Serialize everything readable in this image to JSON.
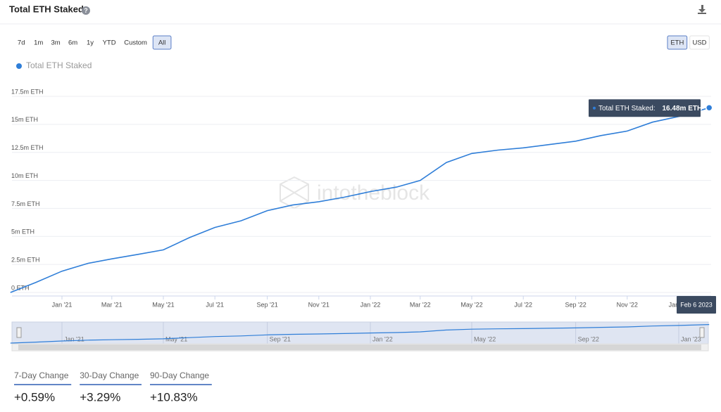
{
  "header": {
    "title": "Total ETH Staked"
  },
  "range_buttons": [
    "7d",
    "1m",
    "3m",
    "6m",
    "1y",
    "YTD",
    "Custom",
    "All"
  ],
  "active_range": 7,
  "unit_buttons": [
    "ETH",
    "USD"
  ],
  "active_unit": 0,
  "watermark": "intotheblock",
  "chart_data": {
    "type": "line",
    "x": [
      "2020-11",
      "2020-12",
      "2021-01",
      "2021-02",
      "2021-03",
      "2021-04",
      "2021-05",
      "2021-06",
      "2021-07",
      "2021-08",
      "2021-09",
      "2021-10",
      "2021-11",
      "2021-12",
      "2022-01",
      "2022-02",
      "2022-03",
      "2022-04",
      "2022-05",
      "2022-06",
      "2022-07",
      "2022-08",
      "2022-09",
      "2022-10",
      "2022-11",
      "2022-12",
      "2023-01",
      "2023-02-06"
    ],
    "series": [
      {
        "name": "Total ETH Staked",
        "color": "#2f7ed8",
        "values": [
          0.0,
          0.9,
          1.9,
          2.6,
          3.0,
          3.4,
          3.8,
          4.9,
          5.8,
          6.4,
          7.3,
          7.8,
          8.1,
          8.5,
          9.0,
          9.4,
          10.0,
          11.6,
          12.4,
          12.7,
          12.9,
          13.2,
          13.5,
          14.0,
          14.4,
          15.2,
          15.7,
          16.48
        ]
      }
    ],
    "ylim": [
      0,
      17.5
    ],
    "yticks": [
      {
        "value": 0,
        "label": "0 ETH"
      },
      {
        "value": 2.5,
        "label": "2.5m ETH"
      },
      {
        "value": 5,
        "label": "5m ETH"
      },
      {
        "value": 7.5,
        "label": "7.5m ETH"
      },
      {
        "value": 10,
        "label": "10m ETH"
      },
      {
        "value": 12.5,
        "label": "12.5m ETH"
      },
      {
        "value": 15,
        "label": "15m ETH"
      },
      {
        "value": 17.5,
        "label": "17.5m ETH"
      }
    ],
    "xticks": [
      {
        "value": "2021-01",
        "label": "Jan '21"
      },
      {
        "value": "2021-03",
        "label": "Mar '21"
      },
      {
        "value": "2021-05",
        "label": "May '21"
      },
      {
        "value": "2021-07",
        "label": "Jul '21"
      },
      {
        "value": "2021-09",
        "label": "Sep '21"
      },
      {
        "value": "2021-11",
        "label": "Nov '21"
      },
      {
        "value": "2022-01",
        "label": "Jan '22"
      },
      {
        "value": "2022-03",
        "label": "Mar '22"
      },
      {
        "value": "2022-05",
        "label": "May '22"
      },
      {
        "value": "2022-07",
        "label": "Jul '22"
      },
      {
        "value": "2022-09",
        "label": "Sep '22"
      },
      {
        "value": "2022-11",
        "label": "Nov '22"
      },
      {
        "value": "2023-01",
        "label": "Jan '23"
      }
    ],
    "grid": true,
    "tooltip": {
      "label": "Total ETH Staked:",
      "value": 16.48,
      "value_label": "16.48m ETH",
      "date": "Feb 6 2023"
    },
    "navigator_ticks": [
      {
        "value": "2021-01",
        "label": "Jan '21"
      },
      {
        "value": "2021-05",
        "label": "May '21"
      },
      {
        "value": "2021-09",
        "label": "Sep '21"
      },
      {
        "value": "2022-01",
        "label": "Jan '22"
      },
      {
        "value": "2022-05",
        "label": "May '22"
      },
      {
        "value": "2022-09",
        "label": "Sep '22"
      },
      {
        "value": "2023-01",
        "label": "Jan '23"
      }
    ]
  },
  "stats": [
    {
      "label": "7-Day Change",
      "value": "+0.59%"
    },
    {
      "label": "30-Day Change",
      "value": "+3.29%"
    },
    {
      "label": "90-Day Change",
      "value": "+10.83%"
    }
  ]
}
